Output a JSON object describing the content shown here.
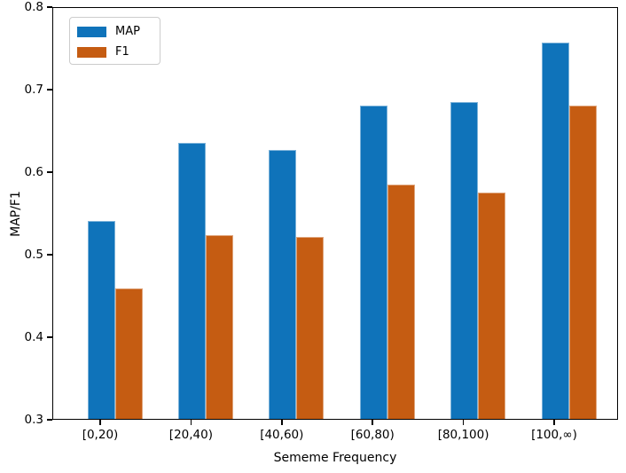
{
  "chart_data": {
    "type": "bar",
    "title": "",
    "xlabel": "Sememe Frequency",
    "ylabel": "MAP/F1",
    "categories": [
      "[0,20)",
      "[20,40)",
      "[40,60)",
      "[60,80)",
      "[80,100)",
      "[100,∞)"
    ],
    "series": [
      {
        "name": "MAP",
        "color": "#0f73ba",
        "values": [
          0.54,
          0.634,
          0.626,
          0.68,
          0.684,
          0.756
        ]
      },
      {
        "name": "F1",
        "color": "#c55c12",
        "values": [
          0.458,
          0.523,
          0.521,
          0.584,
          0.574,
          0.68
        ]
      }
    ],
    "ylim": [
      0.3,
      0.8
    ],
    "yticks": [
      0.3,
      0.4,
      0.5,
      0.6,
      0.7,
      0.8
    ],
    "legend_position": "upper-left",
    "grid": false,
    "axis_color": "#000000",
    "background_color": "#ffffff"
  }
}
